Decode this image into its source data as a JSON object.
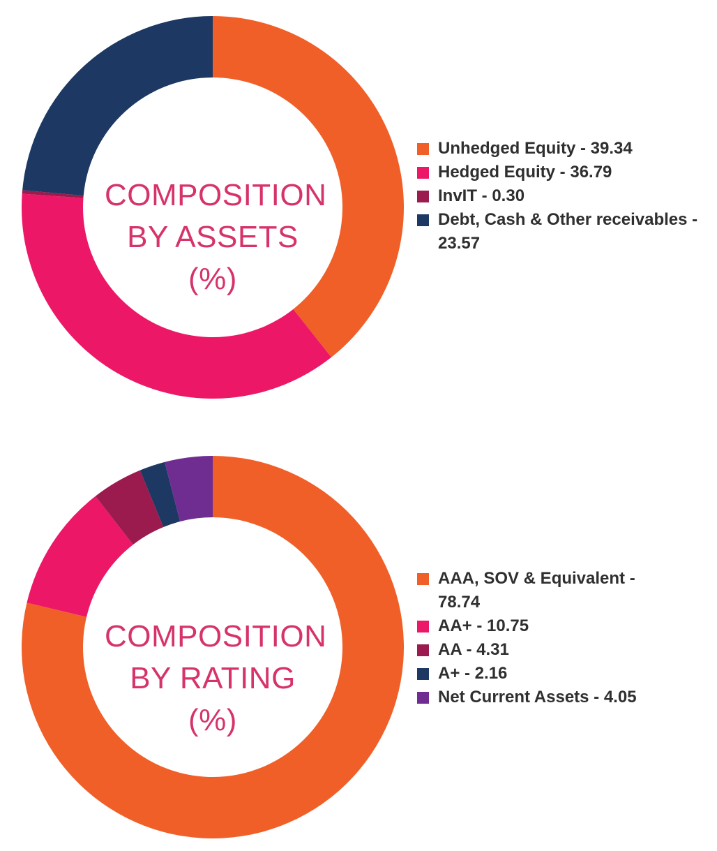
{
  "chart_data": [
    {
      "type": "pie",
      "title_lines": [
        "COMPOSITION",
        "BY ASSETS",
        "(%)"
      ],
      "series": [
        {
          "name": "Unhedged Equity",
          "value": 39.34,
          "color": "#f05f28"
        },
        {
          "name": "Hedged Equity",
          "value": 36.79,
          "color": "#ec1766"
        },
        {
          "name": "InvIT",
          "value": 0.3,
          "color": "#9b1b4e"
        },
        {
          "name": "Debt, Cash & Other receivables",
          "value": 23.57,
          "color": "#1c3863"
        }
      ],
      "legend": [
        {
          "label": "Unhedged Equity - 39.34",
          "color": "#f05f28"
        },
        {
          "label": "Hedged Equity - 36.79",
          "color": "#ec1766"
        },
        {
          "label": "InvIT - 0.30",
          "color": "#9b1b4e"
        },
        {
          "label": "Debt, Cash & Other receivables - 23.57",
          "color": "#1c3863"
        }
      ],
      "legend_position": "right"
    },
    {
      "type": "pie",
      "title_lines": [
        "COMPOSITION",
        "BY RATING",
        "(%)"
      ],
      "series": [
        {
          "name": "AAA, SOV & Equivalent",
          "value": 78.74,
          "color": "#f05f28"
        },
        {
          "name": "AA+",
          "value": 10.75,
          "color": "#ec1766"
        },
        {
          "name": "AA",
          "value": 4.31,
          "color": "#9b1b4e"
        },
        {
          "name": "A+",
          "value": 2.16,
          "color": "#1c3863"
        },
        {
          "name": "Net Current Assets",
          "value": 4.05,
          "color": "#6f2c91"
        }
      ],
      "legend": [
        {
          "label": "AAA, SOV & Equivalent - 78.74",
          "color": "#f05f28"
        },
        {
          "label": "AA+ - 10.75",
          "color": "#ec1766"
        },
        {
          "label": "AA - 4.31",
          "color": "#9b1b4e"
        },
        {
          "label": "A+ - 2.16",
          "color": "#1c3863"
        },
        {
          "label": "Net Current Assets - 4.05",
          "color": "#6f2c91"
        }
      ],
      "legend_position": "right"
    }
  ]
}
